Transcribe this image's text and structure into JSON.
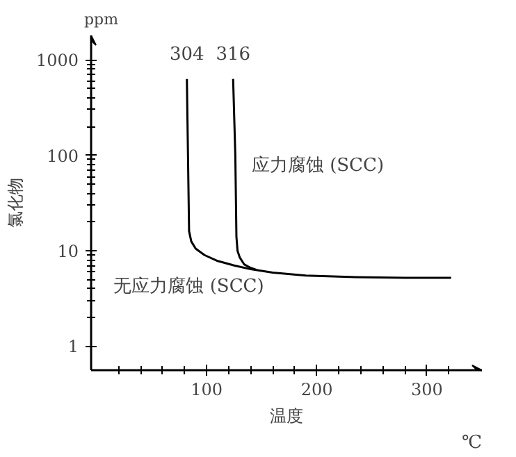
{
  "chart_data": {
    "type": "line",
    "xlabel": "温度",
    "ylabel": "氯化物",
    "log": "y",
    "grid": false,
    "marker": "none",
    "line_style": "solid",
    "xlim": [
      -5,
      350
    ],
    "ylim": [
      0.56,
      1800
    ],
    "xticks": [
      {
        "value": 20,
        "label": null
      },
      {
        "value": 40,
        "label": null
      },
      {
        "value": 60,
        "label": null
      },
      {
        "value": 80,
        "label": null
      },
      100,
      {
        "value": 120,
        "label": null
      },
      {
        "value": 140,
        "label": null
      },
      {
        "value": 160,
        "label": null
      },
      {
        "value": 180,
        "label": null
      },
      200,
      {
        "value": 220,
        "label": null
      },
      {
        "value": 240,
        "label": null
      },
      {
        "value": 260,
        "label": null
      },
      {
        "value": 280,
        "label": null
      },
      300,
      {
        "value": 320,
        "label": null
      }
    ],
    "yticks": [
      1,
      {
        "value": 2,
        "label": null
      },
      {
        "value": 3,
        "label": null
      },
      {
        "value": 4,
        "label": null
      },
      {
        "value": 5,
        "label": null
      },
      {
        "value": 6,
        "label": null
      },
      {
        "value": 7,
        "label": null
      },
      {
        "value": 8,
        "label": null
      },
      {
        "value": 9,
        "label": null
      },
      10,
      {
        "value": 20,
        "label": null
      },
      {
        "value": 30,
        "label": null
      },
      {
        "value": 40,
        "label": null
      },
      {
        "value": 50,
        "label": null
      },
      {
        "value": 60,
        "label": null
      },
      {
        "value": 70,
        "label": null
      },
      {
        "value": 80,
        "label": null
      },
      {
        "value": 90,
        "label": null
      },
      100,
      {
        "value": 200,
        "label": null
      },
      {
        "value": 300,
        "label": null
      },
      {
        "value": 400,
        "label": null
      },
      {
        "value": 500,
        "label": null
      },
      {
        "value": 600,
        "label": null
      },
      {
        "value": 700,
        "label": null
      },
      {
        "value": 800,
        "label": null
      },
      {
        "value": 900,
        "label": null
      },
      1000
    ],
    "series": [
      {
        "name": "304",
        "color": "#000000",
        "x": [
          82,
          83,
          84,
          86,
          90,
          98,
          110,
          125,
          140,
          160,
          190,
          230,
          280,
          322
        ],
        "values": [
          630,
          100,
          16,
          12.5,
          10.5,
          9,
          7.8,
          7,
          6.4,
          5.9,
          5.5,
          5.3,
          5.2,
          5.2
        ]
      },
      {
        "name": "316",
        "color": "#000000",
        "x": [
          124,
          126,
          127,
          128,
          130,
          134,
          140,
          145
        ],
        "values": [
          630,
          100,
          14,
          10,
          8.5,
          7.2,
          6.6,
          6.3
        ]
      }
    ],
    "annotations": [
      "应力腐蚀 (SCC)",
      "无应力腐蚀 (SCC)",
      "ppm",
      "℃"
    ]
  }
}
